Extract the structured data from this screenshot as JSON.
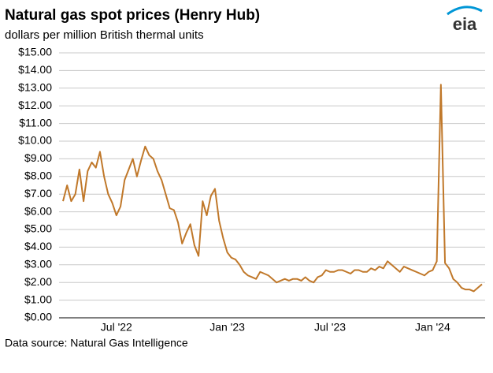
{
  "chart_data": {
    "type": "line",
    "title": "Natural gas spot prices (Henry Hub)",
    "subtitle": "dollars per million British thermal units",
    "source": "Data source: Natural Gas Intelligence",
    "logo": "eia",
    "categories": [
      null,
      null,
      null,
      null,
      null,
      null,
      null,
      null,
      null,
      null,
      null,
      null,
      null,
      "Jul '22",
      null,
      null,
      null,
      null,
      null,
      null,
      null,
      null,
      null,
      null,
      null,
      null,
      null,
      null,
      null,
      null,
      null,
      null,
      null,
      null,
      null,
      null,
      null,
      null,
      null,
      null,
      "Jan '23",
      null,
      null,
      null,
      null,
      null,
      null,
      null,
      null,
      null,
      null,
      null,
      null,
      null,
      null,
      null,
      null,
      null,
      null,
      null,
      null,
      null,
      null,
      null,
      null,
      "Jul '23",
      null,
      null,
      null,
      null,
      null,
      null,
      null,
      null,
      null,
      null,
      null,
      null,
      null,
      null,
      null,
      null,
      null,
      null,
      null,
      null,
      null,
      null,
      null,
      null,
      "Jan '24",
      null,
      null,
      null,
      null,
      null,
      null,
      null,
      null,
      null,
      null,
      null,
      null
    ],
    "series": [
      {
        "name": "Henry Hub",
        "color": "#c0782a",
        "values": [
          6.6,
          7.5,
          6.6,
          7.0,
          8.4,
          6.6,
          8.3,
          8.8,
          8.5,
          9.4,
          8.0,
          7.0,
          6.5,
          5.8,
          6.3,
          7.8,
          8.4,
          9.0,
          8.0,
          8.9,
          9.7,
          9.2,
          9.0,
          8.3,
          7.8,
          7.0,
          6.2,
          6.1,
          5.4,
          4.2,
          4.8,
          5.3,
          4.1,
          3.5,
          6.6,
          5.8,
          6.9,
          7.3,
          5.5,
          4.5,
          3.7,
          3.4,
          3.3,
          3.0,
          2.6,
          2.4,
          2.3,
          2.2,
          2.6,
          2.5,
          2.4,
          2.2,
          2.0,
          2.1,
          2.2,
          2.1,
          2.2,
          2.2,
          2.1,
          2.3,
          2.1,
          2.0,
          2.3,
          2.4,
          2.7,
          2.6,
          2.6,
          2.7,
          2.7,
          2.6,
          2.5,
          2.7,
          2.7,
          2.6,
          2.6,
          2.8,
          2.7,
          2.9,
          2.8,
          3.2,
          3.0,
          2.8,
          2.6,
          2.9,
          2.8,
          2.7,
          2.6,
          2.5,
          2.4,
          2.6,
          2.7,
          3.2,
          13.2,
          3.1,
          2.8,
          2.2,
          2.0,
          1.7,
          1.6,
          1.6,
          1.5,
          1.7,
          1.9
        ]
      }
    ],
    "ylim": [
      0,
      15
    ],
    "yticks": [
      {
        "value": 0,
        "label": "$0.00"
      },
      {
        "value": 1,
        "label": "$1.00"
      },
      {
        "value": 2,
        "label": "$2.00"
      },
      {
        "value": 3,
        "label": "$3.00"
      },
      {
        "value": 4,
        "label": "$4.00"
      },
      {
        "value": 5,
        "label": "$5.00"
      },
      {
        "value": 6,
        "label": "$6.00"
      },
      {
        "value": 7,
        "label": "$7.00"
      },
      {
        "value": 8,
        "label": "$8.00"
      },
      {
        "value": 9,
        "label": "$9.00"
      },
      {
        "value": 10,
        "label": "$10.00"
      },
      {
        "value": 11,
        "label": "$11.00"
      },
      {
        "value": 12,
        "label": "$12.00"
      },
      {
        "value": 13,
        "label": "$13.00"
      },
      {
        "value": 14,
        "label": "$14.00"
      },
      {
        "value": 15,
        "label": "$15.00"
      }
    ],
    "grid": true
  }
}
